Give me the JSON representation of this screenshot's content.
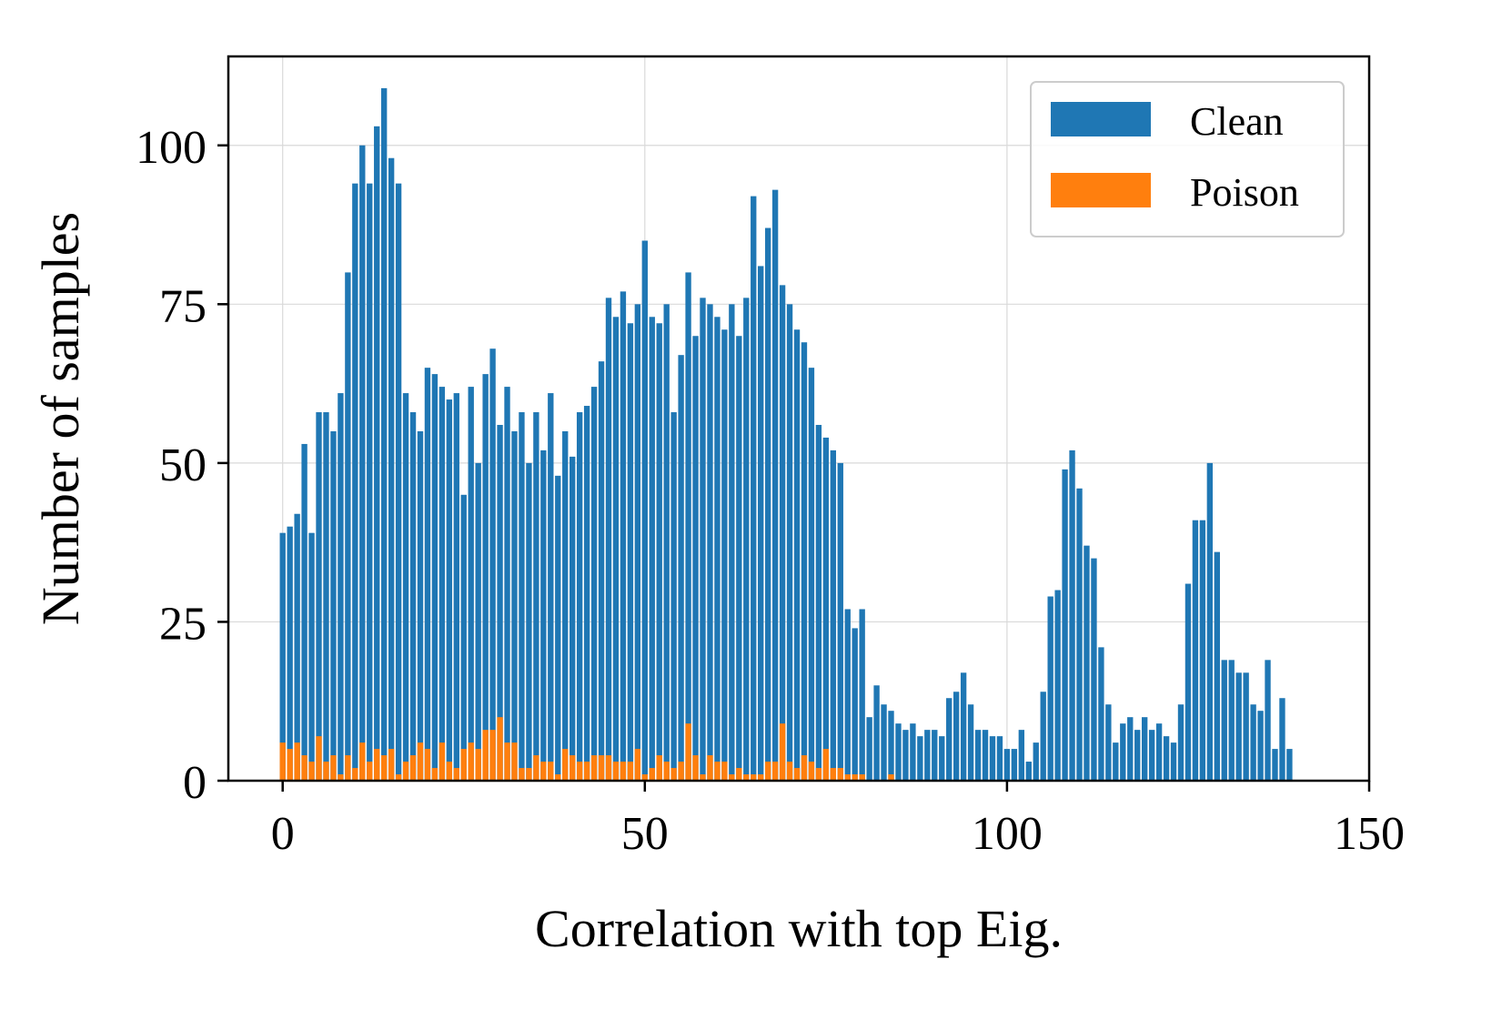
{
  "chart_data": {
    "type": "bar",
    "title": "",
    "xlabel": "Correlation with top Eig.",
    "ylabel": "Number of samples",
    "xlim": [
      -7.5,
      150
    ],
    "ylim": [
      0,
      114
    ],
    "xticks": [
      0,
      50,
      100,
      150
    ],
    "xtick_labels": [
      "0",
      "50",
      "100",
      "150"
    ],
    "yticks": [
      0,
      25,
      50,
      75,
      100
    ],
    "ytick_labels": [
      "0",
      "25",
      "50",
      "75",
      "100"
    ],
    "grid": true,
    "stacked": true,
    "bin_width": 1,
    "x": [
      0,
      1,
      2,
      3,
      4,
      5,
      6,
      7,
      8,
      9,
      10,
      11,
      12,
      13,
      14,
      15,
      16,
      17,
      18,
      19,
      20,
      21,
      22,
      23,
      24,
      25,
      26,
      27,
      28,
      29,
      30,
      31,
      32,
      33,
      34,
      35,
      36,
      37,
      38,
      39,
      40,
      41,
      42,
      43,
      44,
      45,
      46,
      47,
      48,
      49,
      50,
      51,
      52,
      53,
      54,
      55,
      56,
      57,
      58,
      59,
      60,
      61,
      62,
      63,
      64,
      65,
      66,
      67,
      68,
      69,
      70,
      71,
      72,
      73,
      74,
      75,
      76,
      77,
      78,
      79,
      80,
      81,
      82,
      83,
      84,
      85,
      86,
      87,
      88,
      89,
      90,
      91,
      92,
      93,
      94,
      95,
      96,
      97,
      98,
      99,
      100,
      101,
      102,
      103,
      104,
      105,
      106,
      107,
      108,
      109,
      110,
      111,
      112,
      113,
      114,
      115,
      116,
      117,
      118,
      119,
      120,
      121,
      122,
      123,
      124,
      125,
      126,
      127,
      128,
      129,
      130,
      131,
      132,
      133,
      134,
      135,
      136,
      137,
      138,
      139
    ],
    "series": [
      {
        "name": "Clean",
        "color": "#1f77b4",
        "values": [
          39,
          40,
          42,
          53,
          39,
          58,
          58,
          55,
          61,
          80,
          94,
          100,
          94,
          103,
          109,
          98,
          94,
          61,
          58,
          55,
          65,
          64,
          62,
          60,
          61,
          45,
          62,
          50,
          64,
          68,
          56,
          62,
          55,
          58,
          50,
          58,
          52,
          61,
          48,
          55,
          51,
          58,
          59,
          62,
          66,
          76,
          73,
          77,
          72,
          75,
          85,
          73,
          72,
          75,
          58,
          67,
          80,
          70,
          76,
          75,
          73,
          71,
          75,
          70,
          76,
          92,
          81,
          87,
          93,
          78,
          75,
          71,
          69,
          65,
          56,
          54,
          52,
          50,
          27,
          24,
          27,
          10,
          15,
          12,
          11,
          9,
          8,
          9,
          7,
          8,
          8,
          7,
          13,
          14,
          17,
          12,
          8,
          8,
          7,
          7,
          5,
          5,
          8,
          3,
          6,
          14,
          29,
          30,
          49,
          52,
          46,
          37,
          35,
          21,
          12,
          6,
          9,
          10,
          8,
          10,
          8,
          9,
          7,
          6,
          12,
          31,
          41,
          41,
          50,
          36,
          19,
          19,
          17,
          17,
          12,
          11,
          19,
          5,
          13,
          5
        ],
        "legend_color": "#1f77b4"
      },
      {
        "name": "Poison",
        "color": "#ff7f0e",
        "values": [
          6,
          5,
          6,
          4,
          3,
          7,
          3,
          4,
          1,
          4,
          2,
          6,
          3,
          5,
          4,
          5,
          1,
          3,
          4,
          6,
          5,
          2,
          6,
          3,
          2,
          5,
          6,
          5,
          8,
          8,
          10,
          6,
          6,
          2,
          2,
          4,
          3,
          3,
          1,
          5,
          4,
          3,
          3,
          4,
          4,
          4,
          3,
          3,
          3,
          5,
          1,
          2,
          4,
          3,
          2,
          3,
          9,
          4,
          1,
          4,
          3,
          3,
          1,
          2,
          1,
          1,
          1,
          3,
          3,
          9,
          3,
          2,
          4,
          3,
          2,
          5,
          2,
          2,
          1,
          1,
          1,
          0,
          0,
          0,
          1,
          0,
          0,
          0,
          0,
          0,
          0,
          0,
          0,
          0,
          0,
          0,
          0,
          0,
          0,
          0,
          0,
          0,
          0,
          0,
          0,
          0,
          0,
          0,
          0,
          0,
          0,
          0,
          0,
          0,
          0,
          0,
          0,
          0,
          0,
          0,
          0,
          0,
          0,
          0,
          0,
          0,
          0,
          0,
          0,
          0,
          0,
          0,
          0,
          0,
          0,
          0,
          0,
          0,
          0,
          0
        ]
      }
    ],
    "legend": {
      "position": "upper-right",
      "entries": [
        {
          "label": "Clean",
          "color": "#1f77b4"
        },
        {
          "label": "Poison",
          "color": "#ff7f0e"
        }
      ]
    }
  }
}
